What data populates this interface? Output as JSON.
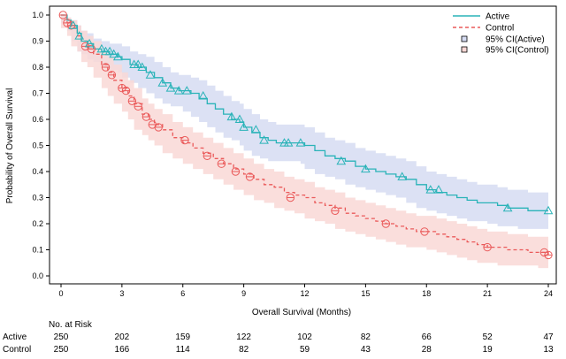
{
  "chart_data": {
    "type": "line",
    "xlabel": "Overall Survival (Months)",
    "ylabel": "Probability of Overall Survival",
    "xlim": [
      0,
      24
    ],
    "ylim": [
      0,
      1
    ],
    "x_ticks": [
      "0",
      "3",
      "6",
      "9",
      "12",
      "15",
      "18",
      "21",
      "24"
    ],
    "y_ticks": [
      "0.0",
      "0.1",
      "0.2",
      "0.3",
      "0.4",
      "0.5",
      "0.6",
      "0.7",
      "0.8",
      "0.9",
      "1.0"
    ],
    "grid": false,
    "legend_position": "top-right",
    "legend": {
      "active": "Active",
      "control": "Control",
      "ci_active": "95% CI(Active)",
      "ci_control": "95% CI(Control)"
    },
    "colors": {
      "active": "#2ab3b8",
      "control": "#ea5a5a",
      "ci_active": "#d6dcf2",
      "ci_control": "#f9d8d6"
    },
    "series": [
      {
        "name": "Active",
        "style": "solid step",
        "x": [
          0,
          0.3,
          0.5,
          0.8,
          1.0,
          1.3,
          1.6,
          2.0,
          2.4,
          2.8,
          3.0,
          3.4,
          3.8,
          4.2,
          4.6,
          5.0,
          5.4,
          5.8,
          6.0,
          6.4,
          6.8,
          7.2,
          7.6,
          8.0,
          8.4,
          8.8,
          9.0,
          9.4,
          9.8,
          10.2,
          10.6,
          11.0,
          11.4,
          11.8,
          12.0,
          12.5,
          13.0,
          13.5,
          14.0,
          14.5,
          15.0,
          15.5,
          16.0,
          16.5,
          17.0,
          17.5,
          18.0,
          18.5,
          19.0,
          19.5,
          20.0,
          20.5,
          21.0,
          21.5,
          22.0,
          22.5,
          23.0,
          23.5,
          24.0
        ],
        "y": [
          1.0,
          0.98,
          0.96,
          0.93,
          0.9,
          0.89,
          0.87,
          0.86,
          0.85,
          0.84,
          0.83,
          0.81,
          0.8,
          0.78,
          0.76,
          0.74,
          0.72,
          0.71,
          0.71,
          0.7,
          0.68,
          0.66,
          0.64,
          0.62,
          0.6,
          0.59,
          0.57,
          0.55,
          0.53,
          0.52,
          0.51,
          0.51,
          0.51,
          0.51,
          0.5,
          0.48,
          0.46,
          0.45,
          0.44,
          0.42,
          0.41,
          0.4,
          0.39,
          0.38,
          0.37,
          0.35,
          0.33,
          0.32,
          0.31,
          0.3,
          0.29,
          0.28,
          0.28,
          0.27,
          0.26,
          0.26,
          0.25,
          0.25,
          0.25
        ],
        "ci_lower": [
          1.0,
          0.97,
          0.94,
          0.9,
          0.86,
          0.85,
          0.83,
          0.82,
          0.8,
          0.79,
          0.78,
          0.76,
          0.74,
          0.72,
          0.7,
          0.68,
          0.66,
          0.65,
          0.65,
          0.63,
          0.61,
          0.59,
          0.57,
          0.55,
          0.53,
          0.52,
          0.5,
          0.48,
          0.46,
          0.45,
          0.44,
          0.44,
          0.44,
          0.44,
          0.43,
          0.41,
          0.39,
          0.38,
          0.37,
          0.35,
          0.34,
          0.33,
          0.32,
          0.31,
          0.3,
          0.28,
          0.26,
          0.25,
          0.24,
          0.23,
          0.22,
          0.21,
          0.21,
          0.2,
          0.19,
          0.19,
          0.18,
          0.18,
          0.18
        ],
        "ci_upper": [
          1.0,
          0.99,
          0.98,
          0.96,
          0.94,
          0.93,
          0.91,
          0.9,
          0.89,
          0.89,
          0.88,
          0.86,
          0.85,
          0.84,
          0.82,
          0.8,
          0.78,
          0.77,
          0.77,
          0.76,
          0.75,
          0.73,
          0.71,
          0.69,
          0.67,
          0.66,
          0.64,
          0.62,
          0.6,
          0.59,
          0.58,
          0.58,
          0.58,
          0.58,
          0.57,
          0.55,
          0.53,
          0.52,
          0.51,
          0.49,
          0.48,
          0.47,
          0.46,
          0.45,
          0.44,
          0.42,
          0.4,
          0.39,
          0.38,
          0.37,
          0.36,
          0.35,
          0.35,
          0.34,
          0.33,
          0.33,
          0.32,
          0.32,
          0.32
        ],
        "censored_x": [
          0.6,
          0.9,
          1.4,
          2.0,
          2.2,
          2.4,
          2.6,
          2.8,
          3.6,
          3.8,
          4.0,
          4.4,
          5.0,
          5.4,
          5.8,
          6.2,
          7.0,
          8.4,
          8.8,
          9.0,
          9.6,
          10.0,
          11.0,
          11.2,
          11.8,
          13.8,
          15.0,
          16.8,
          18.2,
          18.6,
          22.0,
          24.0
        ],
        "censored_y": [
          0.96,
          0.92,
          0.89,
          0.87,
          0.86,
          0.86,
          0.85,
          0.84,
          0.81,
          0.81,
          0.8,
          0.77,
          0.74,
          0.72,
          0.71,
          0.71,
          0.69,
          0.61,
          0.6,
          0.57,
          0.56,
          0.52,
          0.51,
          0.51,
          0.51,
          0.44,
          0.41,
          0.38,
          0.33,
          0.33,
          0.26,
          0.25
        ]
      },
      {
        "name": "Control",
        "style": "dashed step",
        "x": [
          0,
          0.3,
          0.5,
          0.8,
          1.0,
          1.3,
          1.6,
          2.0,
          2.3,
          2.6,
          3.0,
          3.3,
          3.6,
          4.0,
          4.3,
          4.6,
          5.0,
          5.5,
          6.0,
          6.5,
          7.0,
          7.5,
          8.0,
          8.5,
          9.0,
          9.5,
          10.0,
          10.5,
          11.0,
          11.5,
          12.0,
          12.5,
          13.0,
          13.5,
          14.0,
          14.5,
          15.0,
          15.5,
          16.0,
          16.5,
          17.0,
          17.5,
          18.0,
          18.5,
          19.0,
          19.5,
          20.0,
          20.5,
          21.0,
          21.5,
          22.0,
          22.5,
          23.0,
          23.5,
          24.0
        ],
        "y": [
          1.0,
          0.97,
          0.95,
          0.92,
          0.9,
          0.87,
          0.85,
          0.81,
          0.78,
          0.75,
          0.72,
          0.69,
          0.66,
          0.62,
          0.6,
          0.58,
          0.56,
          0.53,
          0.51,
          0.49,
          0.47,
          0.45,
          0.43,
          0.41,
          0.39,
          0.37,
          0.35,
          0.34,
          0.32,
          0.31,
          0.3,
          0.28,
          0.27,
          0.26,
          0.24,
          0.23,
          0.22,
          0.21,
          0.2,
          0.19,
          0.18,
          0.17,
          0.17,
          0.16,
          0.15,
          0.14,
          0.13,
          0.12,
          0.11,
          0.11,
          0.1,
          0.1,
          0.09,
          0.09,
          0.08
        ],
        "ci_lower": [
          1.0,
          0.95,
          0.92,
          0.88,
          0.86,
          0.82,
          0.8,
          0.76,
          0.72,
          0.69,
          0.66,
          0.63,
          0.6,
          0.56,
          0.54,
          0.52,
          0.5,
          0.47,
          0.45,
          0.43,
          0.41,
          0.39,
          0.37,
          0.35,
          0.33,
          0.31,
          0.29,
          0.28,
          0.26,
          0.25,
          0.24,
          0.22,
          0.21,
          0.2,
          0.18,
          0.17,
          0.16,
          0.15,
          0.14,
          0.13,
          0.12,
          0.11,
          0.11,
          0.1,
          0.09,
          0.08,
          0.07,
          0.06,
          0.05,
          0.05,
          0.04,
          0.04,
          0.04,
          0.04,
          0.03
        ],
        "ci_upper": [
          1.0,
          0.99,
          0.98,
          0.96,
          0.94,
          0.92,
          0.9,
          0.86,
          0.84,
          0.81,
          0.78,
          0.75,
          0.72,
          0.68,
          0.66,
          0.64,
          0.62,
          0.59,
          0.57,
          0.55,
          0.53,
          0.51,
          0.49,
          0.47,
          0.45,
          0.43,
          0.41,
          0.4,
          0.38,
          0.37,
          0.36,
          0.34,
          0.33,
          0.32,
          0.3,
          0.29,
          0.28,
          0.27,
          0.26,
          0.25,
          0.24,
          0.23,
          0.23,
          0.22,
          0.21,
          0.2,
          0.19,
          0.18,
          0.17,
          0.17,
          0.16,
          0.16,
          0.15,
          0.15,
          0.14
        ],
        "censored_x": [
          0.1,
          0.3,
          0.5,
          1.2,
          1.5,
          2.2,
          2.5,
          3.0,
          3.2,
          3.5,
          3.8,
          4.2,
          4.5,
          4.8,
          6.1,
          7.2,
          7.9,
          8.6,
          9.3,
          11.3,
          13.5,
          16.0,
          17.9,
          21.0,
          23.8,
          24.0
        ],
        "censored_y": [
          1.0,
          0.97,
          0.96,
          0.88,
          0.87,
          0.8,
          0.77,
          0.72,
          0.71,
          0.67,
          0.65,
          0.61,
          0.58,
          0.57,
          0.52,
          0.46,
          0.43,
          0.4,
          0.38,
          0.3,
          0.25,
          0.2,
          0.17,
          0.11,
          0.09,
          0.08
        ]
      }
    ],
    "risk_table": {
      "heading": "No. at Risk",
      "times": [
        0,
        3,
        6,
        9,
        12,
        15,
        18,
        21,
        24
      ],
      "rows": [
        {
          "label": "Active",
          "values": [
            "250",
            "202",
            "159",
            "122",
            "102",
            "82",
            "66",
            "52",
            "47"
          ]
        },
        {
          "label": "Control",
          "values": [
            "250",
            "166",
            "114",
            "82",
            "59",
            "43",
            "28",
            "19",
            "13"
          ]
        }
      ]
    }
  }
}
